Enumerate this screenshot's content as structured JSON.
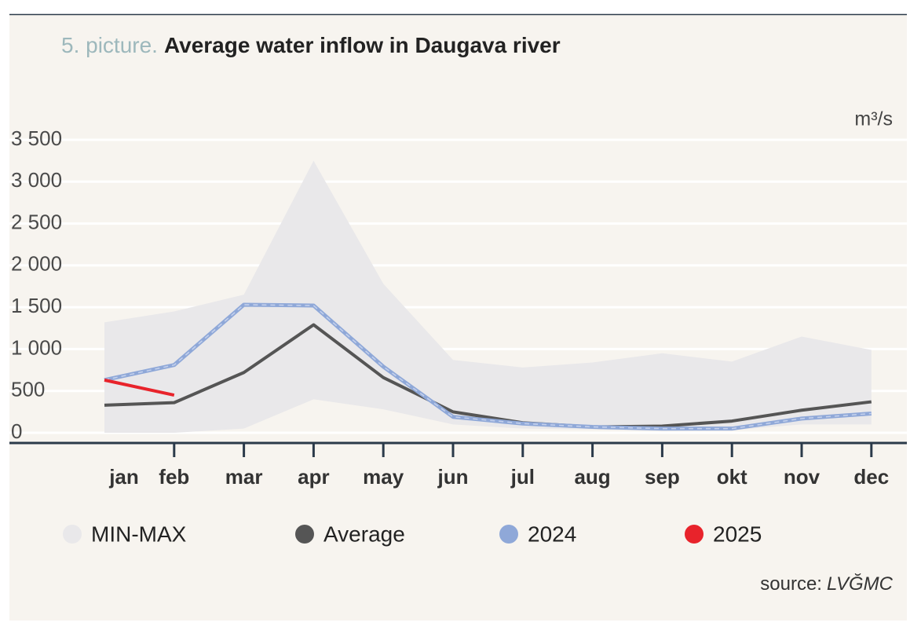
{
  "chart_data": {
    "type": "line",
    "title_prefix": "5. picture.",
    "title": "Average water inflow in Daugava river",
    "y_unit": "m³/s",
    "source_label": "source:",
    "source": "LVĞMC",
    "categories": [
      "jan",
      "feb",
      "mar",
      "apr",
      "may",
      "jun",
      "jul",
      "aug",
      "sep",
      "okt",
      "nov",
      "dec"
    ],
    "series": [
      {
        "name": "MIN-MAX",
        "color": "#e9e8ea",
        "kind": "band",
        "low": [
          0,
          0,
          50,
          400,
          280,
          100,
          50,
          40,
          20,
          30,
          100,
          100
        ],
        "high": [
          1320,
          1450,
          1650,
          3250,
          1780,
          870,
          780,
          840,
          950,
          850,
          1150,
          990
        ]
      },
      {
        "name": "Average",
        "color": "#555555",
        "values": [
          330,
          360,
          720,
          1290,
          660,
          250,
          120,
          70,
          80,
          140,
          270,
          370
        ]
      },
      {
        "name": "2024",
        "color": "#8fa8d8",
        "dashed": true,
        "values": [
          630,
          810,
          1530,
          1520,
          790,
          190,
          110,
          70,
          50,
          50,
          170,
          230
        ]
      },
      {
        "name": "2025",
        "color": "#e8232b",
        "values": [
          630,
          450,
          null,
          null,
          null,
          null,
          null,
          null,
          null,
          null,
          null,
          null
        ]
      }
    ],
    "ylim": [
      0,
      3500
    ],
    "yticks": [
      0,
      500,
      {
        "value": 1000,
        "label": "1 000"
      },
      {
        "value": 1500,
        "label": "1 500"
      },
      {
        "value": 2000,
        "label": "2 000"
      },
      {
        "value": 2500,
        "label": "2 500"
      },
      {
        "value": 3000,
        "label": "3 000"
      },
      {
        "value": 3500,
        "label": "3 500"
      }
    ],
    "grid": true
  }
}
